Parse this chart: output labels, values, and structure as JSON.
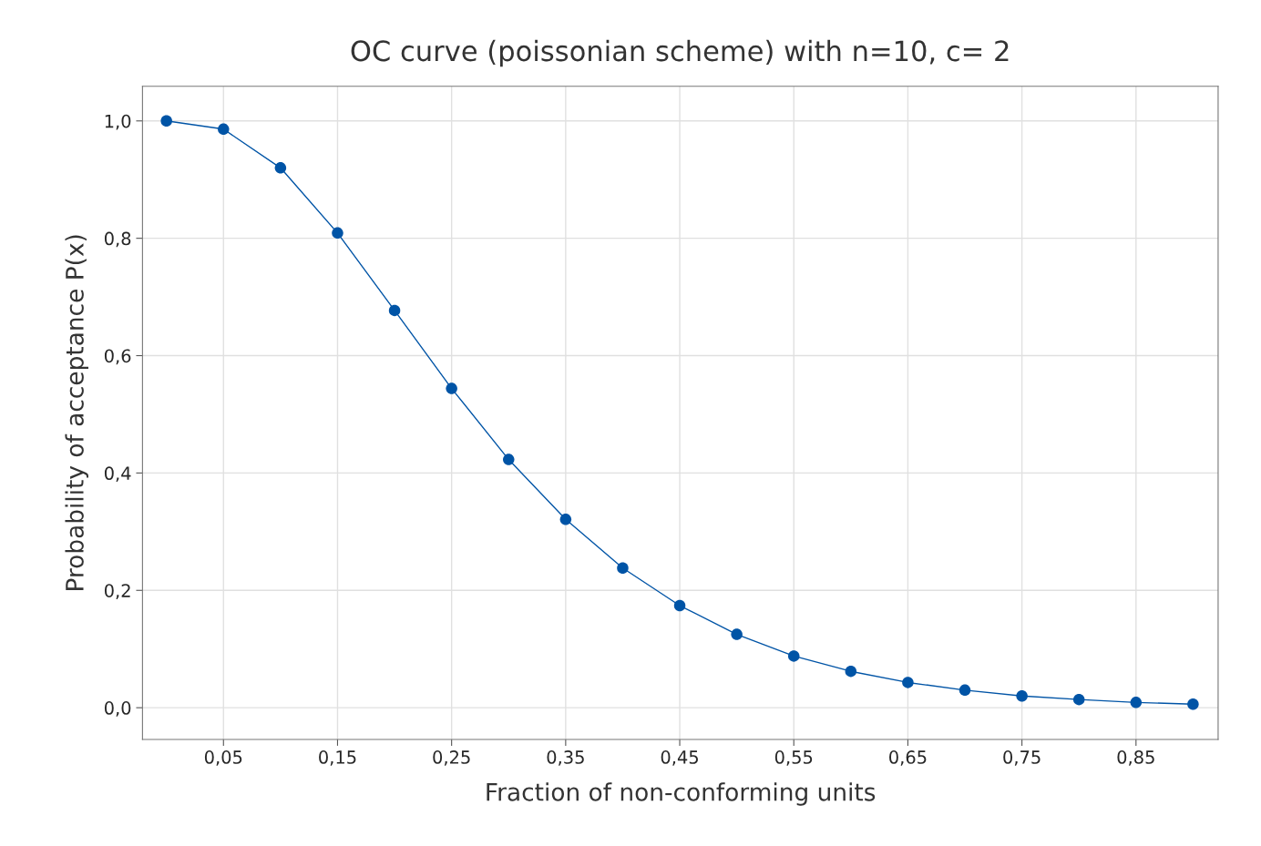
{
  "chart_data": {
    "type": "line",
    "title": "OC curve (poissonian scheme) with n=10, c= 2",
    "xlabel": "Fraction of non-conforming units",
    "ylabel": "Probability of acceptance P(x)",
    "x": [
      0,
      0.05,
      0.1,
      0.15,
      0.2,
      0.25,
      0.3,
      0.35,
      0.4,
      0.45,
      0.5,
      0.55,
      0.6,
      0.65,
      0.7,
      0.75,
      0.8,
      0.85,
      0.9
    ],
    "series": [
      {
        "color": "#0054a6",
        "values": [
          1.0,
          0.986,
          0.92,
          0.809,
          0.677,
          0.544,
          0.423,
          0.321,
          0.238,
          0.174,
          0.125,
          0.088,
          0.062,
          0.043,
          0.03,
          0.02,
          0.014,
          0.009,
          0.006
        ]
      }
    ],
    "xlim": [
      -0.021,
      0.922
    ],
    "ylim": [
      -0.054,
      1.059
    ],
    "xticks": [
      {
        "value": 0.05,
        "label": "0,05"
      },
      {
        "value": 0.15,
        "label": "0,15"
      },
      {
        "value": 0.25,
        "label": "0,25"
      },
      {
        "value": 0.35,
        "label": "0,35"
      },
      {
        "value": 0.45,
        "label": "0,45"
      },
      {
        "value": 0.55,
        "label": "0,55"
      },
      {
        "value": 0.65,
        "label": "0,65"
      },
      {
        "value": 0.75,
        "label": "0,75"
      },
      {
        "value": 0.85,
        "label": "0,85"
      }
    ],
    "yticks": [
      {
        "value": 0,
        "label": "0,0"
      },
      {
        "value": 0.2,
        "label": "0,2"
      },
      {
        "value": 0.4,
        "label": "0,4"
      },
      {
        "value": 0.6,
        "label": "0,6"
      },
      {
        "value": 0.8,
        "label": "0,8"
      },
      {
        "value": 1.0,
        "label": "1,0"
      }
    ],
    "grid": true,
    "marker": "circle",
    "line_style": "solid",
    "legend": false
  }
}
